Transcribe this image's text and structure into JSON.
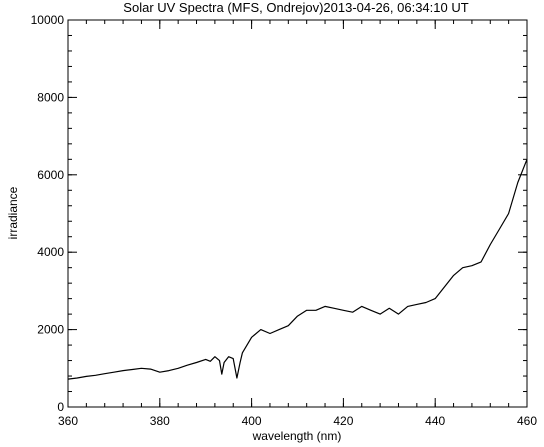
{
  "chart_data": {
    "type": "line",
    "title": "Solar UV Spectra (MFS, Ondrejov)2013-04-26, 06:34:10 UT",
    "xlabel": "wavelength (nm)",
    "ylabel": "irradiance",
    "xlim": [
      360,
      460
    ],
    "ylim": [
      0,
      10000
    ],
    "x_ticks": [
      360,
      380,
      400,
      420,
      440,
      460
    ],
    "y_ticks": [
      0,
      2000,
      4000,
      6000,
      8000,
      10000
    ],
    "x_minor_step": 4,
    "y_minor_step": 400,
    "grid": false,
    "legend": "none",
    "line_color": "#000000",
    "series": [
      {
        "x": [
          360,
          362,
          364,
          366,
          368,
          370,
          372,
          374,
          376,
          378,
          380,
          382,
          384,
          386,
          388,
          390,
          391,
          392,
          393,
          393.5,
          394,
          395,
          396,
          396.8,
          397.5,
          398,
          399,
          400,
          402,
          404,
          406,
          408,
          410,
          412,
          414,
          416,
          418,
          420,
          422,
          424,
          426,
          428,
          430,
          432,
          434,
          436,
          438,
          440,
          442,
          444,
          446,
          448,
          450,
          452,
          454,
          456,
          458,
          460
        ],
        "y": [
          720,
          750,
          790,
          820,
          860,
          900,
          940,
          970,
          1000,
          980,
          900,
          940,
          1000,
          1080,
          1150,
          1230,
          1180,
          1300,
          1200,
          850,
          1150,
          1300,
          1250,
          750,
          1150,
          1400,
          1600,
          1800,
          2000,
          1900,
          2000,
          2100,
          2350,
          2500,
          2500,
          2600,
          2550,
          2500,
          2450,
          2600,
          2500,
          2400,
          2550,
          2400,
          2600,
          2650,
          2700,
          2800,
          3100,
          3400,
          3600,
          3650,
          3750,
          4200,
          4600,
          5000,
          5800,
          6400
        ]
      }
    ]
  }
}
